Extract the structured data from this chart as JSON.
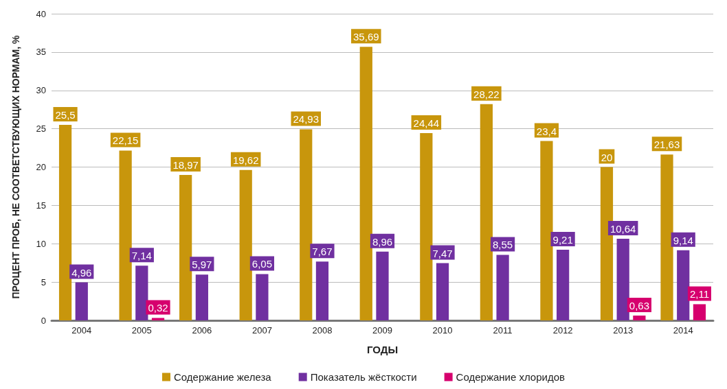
{
  "chart_data": {
    "type": "bar",
    "xlabel": "ГОДЫ",
    "ylabel": "ПРОЦЕНТ ПРОБ, НЕ СООТВЕТСТВУЮЩИХ НОРМАМ, %",
    "categories": [
      "2004",
      "2005",
      "2006",
      "2007",
      "2008",
      "2009",
      "2010",
      "2011",
      "2012",
      "2013",
      "2014"
    ],
    "series": [
      {
        "name": "Содержание железа",
        "color": "#c8960c",
        "values": [
          25.5,
          22.15,
          18.97,
          19.62,
          24.93,
          35.69,
          24.44,
          28.22,
          23.4,
          20,
          21.63
        ],
        "value_labels": [
          "25,5",
          "22,15",
          "18,97",
          "19,62",
          "24,93",
          "35,69",
          "24,44",
          "28,22",
          "23,4",
          "20",
          "21,63"
        ]
      },
      {
        "name": "Показатель жёсткости",
        "color": "#7030a0",
        "values": [
          4.96,
          7.14,
          5.97,
          6.05,
          7.67,
          8.96,
          7.47,
          8.55,
          9.21,
          10.64,
          9.14
        ],
        "value_labels": [
          "4,96",
          "7,14",
          "5,97",
          "6,05",
          "7,67",
          "8,96",
          "7,47",
          "8,55",
          "9,21",
          "10,64",
          "9,14"
        ]
      },
      {
        "name": "Содержание хлоридов",
        "color": "#d6006e",
        "values": [
          0,
          0.32,
          0,
          0,
          0,
          0,
          0,
          0,
          0,
          0.63,
          2.11
        ],
        "value_labels": [
          null,
          "0,32",
          null,
          null,
          null,
          null,
          null,
          null,
          null,
          "0,63",
          "2,11"
        ]
      }
    ],
    "ylim": [
      0,
      40
    ],
    "yticks": [
      0,
      5,
      10,
      15,
      20,
      25,
      30,
      35,
      40
    ],
    "grid": "y",
    "legend": "bottom"
  }
}
